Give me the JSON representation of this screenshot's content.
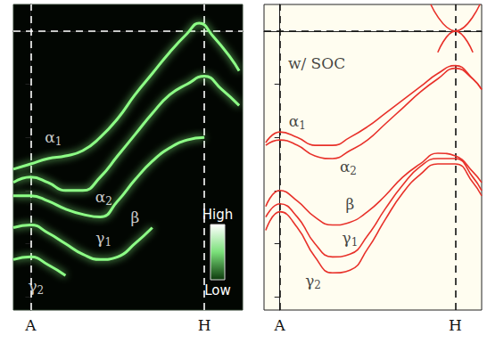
{
  "chart_data": [
    {
      "type": "line",
      "xlim": [
        -0.1,
        1.22
      ],
      "xticks": [
        {
          "value": 0,
          "label": "A"
        },
        {
          "value": 1,
          "label": "H"
        }
      ],
      "ylim": [
        -1.05,
        0.1
      ],
      "yticks": [
        -1,
        -0.8,
        -0.6,
        -0.4,
        -0.2,
        0
      ],
      "tick_labels": "x",
      "grid": true,
      "reference_lines": [
        {
          "axis": "y",
          "value": 0
        }
      ],
      "color": "#8dff86",
      "colorbar": {
        "labels": [
          "High",
          "Low"
        ]
      },
      "series": [
        {
          "x": [
            -0.1,
            0,
            0.1,
            0.2,
            0.3,
            0.4,
            0.5,
            0.6,
            0.7,
            0.8,
            0.9,
            0.97,
            1.05,
            1.15,
            1.2
          ],
          "values": [
            -0.52,
            -0.5,
            -0.48,
            -0.47,
            -0.45,
            -0.4,
            -0.33,
            -0.24,
            -0.16,
            -0.08,
            -0.01,
            0.03,
            -0.02,
            -0.1,
            -0.15
          ]
        },
        {
          "x": [
            -0.1,
            0,
            0.1,
            0.2,
            0.3,
            0.4,
            0.5,
            0.6,
            0.7,
            0.8,
            0.9,
            1.0,
            1.1,
            1.2
          ],
          "values": [
            -0.57,
            -0.55,
            -0.57,
            -0.6,
            -0.6,
            -0.55,
            -0.47,
            -0.39,
            -0.31,
            -0.24,
            -0.2,
            -0.17,
            -0.22,
            -0.28
          ]
        },
        {
          "x": [
            -0.1,
            0,
            0.1,
            0.2,
            0.3,
            0.4,
            0.5,
            0.6,
            0.7,
            0.8,
            0.9,
            1.0
          ],
          "values": [
            -0.62,
            -0.62,
            -0.64,
            -0.67,
            -0.69,
            -0.7,
            -0.64,
            -0.56,
            -0.49,
            -0.44,
            -0.41,
            -0.4
          ]
        },
        {
          "x": [
            -0.1,
            0,
            0.1,
            0.2,
            0.3,
            0.4,
            0.5,
            0.6,
            0.7
          ],
          "values": [
            -0.74,
            -0.73,
            -0.76,
            -0.8,
            -0.84,
            -0.86,
            -0.85,
            -0.8,
            -0.74
          ]
        },
        {
          "x": [
            -0.1,
            0,
            0.1,
            0.2
          ],
          "values": [
            -0.86,
            -0.85,
            -0.88,
            -0.92
          ]
        }
      ],
      "annotations": [
        {
          "text": "α1",
          "x": 0.13,
          "y": -0.4
        },
        {
          "text": "α2",
          "x": 0.42,
          "y": -0.625
        },
        {
          "text": "β",
          "x": 0.6,
          "y": -0.7
        },
        {
          "text": "γ1",
          "x": 0.42,
          "y": -0.78
        },
        {
          "text": "γ2",
          "x": 0.03,
          "y": -0.96
        }
      ]
    },
    {
      "type": "line",
      "xlim": [
        -0.09,
        1.15
      ],
      "xticks": [
        {
          "value": 0,
          "label": "A"
        },
        {
          "value": 1,
          "label": "H"
        }
      ],
      "ylim": [
        -1.05,
        0.1
      ],
      "yticks": [
        -1,
        -0.8,
        -0.6,
        -0.4,
        -0.2,
        0
      ],
      "tick_labels": "x",
      "grid": true,
      "reference_lines": [
        {
          "axis": "y",
          "value": 0
        }
      ],
      "color": "#e8312a",
      "series": [
        {
          "x": [
            -0.08,
            0,
            0.1,
            0.2,
            0.3,
            0.4,
            0.5,
            0.6,
            0.7,
            0.8,
            0.9,
            1.0,
            1.1,
            1.15
          ],
          "values": [
            -0.42,
            -0.38,
            -0.4,
            -0.43,
            -0.43,
            -0.4,
            -0.36,
            -0.31,
            -0.26,
            -0.21,
            -0.16,
            -0.13,
            -0.18,
            -0.22
          ]
        },
        {
          "x": [
            -0.08,
            0,
            0.1,
            0.2,
            0.3,
            0.4,
            0.5,
            0.6,
            0.7,
            0.8,
            0.9,
            1.0,
            1.1,
            1.15
          ],
          "values": [
            -0.43,
            -0.41,
            -0.43,
            -0.47,
            -0.48,
            -0.45,
            -0.41,
            -0.35,
            -0.29,
            -0.23,
            -0.18,
            -0.14,
            -0.18,
            -0.22
          ]
        },
        {
          "x": [
            -0.08,
            0,
            0.1,
            0.2,
            0.3,
            0.4,
            0.5,
            0.6,
            0.7,
            0.8,
            0.9,
            1.0,
            1.1,
            1.15
          ],
          "values": [
            -0.66,
            -0.6,
            -0.64,
            -0.7,
            -0.73,
            -0.72,
            -0.68,
            -0.62,
            -0.55,
            -0.5,
            -0.46,
            -0.47,
            -0.53,
            -0.57
          ]
        },
        {
          "x": [
            -0.08,
            0,
            0.1,
            0.2,
            0.3,
            0.4,
            0.5,
            0.6,
            0.7,
            0.8,
            0.9,
            1.0,
            1.1,
            1.15
          ],
          "values": [
            -0.7,
            -0.65,
            -0.7,
            -0.8,
            -0.85,
            -0.84,
            -0.77,
            -0.67,
            -0.58,
            -0.51,
            -0.48,
            -0.48,
            -0.55,
            -0.6
          ]
        },
        {
          "x": [
            -0.08,
            0,
            0.1,
            0.2,
            0.3,
            0.4,
            0.5,
            0.6,
            0.7,
            0.8,
            0.9,
            1.0,
            1.1,
            1.15
          ],
          "values": [
            -0.75,
            -0.68,
            -0.74,
            -0.85,
            -0.91,
            -0.9,
            -0.82,
            -0.71,
            -0.61,
            -0.54,
            -0.5,
            -0.5,
            -0.57,
            -0.62
          ]
        },
        {
          "x": [
            0.86,
            1.0,
            1.14
          ],
          "values": [
            0.1,
            0,
            0.1
          ]
        },
        {
          "x": [
            0.9,
            1.0,
            1.1
          ],
          "values": [
            -0.08,
            0,
            -0.08
          ]
        }
      ],
      "annotations": [
        {
          "text": "w/ SOC",
          "x": 0.21,
          "y": -0.12
        },
        {
          "text": "α1",
          "x": 0.1,
          "y": -0.34
        },
        {
          "text": "α2",
          "x": 0.39,
          "y": -0.51
        },
        {
          "text": "β",
          "x": 0.4,
          "y": -0.65
        },
        {
          "text": "γ1",
          "x": 0.4,
          "y": -0.78
        },
        {
          "text": "γ2",
          "x": 0.19,
          "y": -0.94
        }
      ]
    }
  ]
}
